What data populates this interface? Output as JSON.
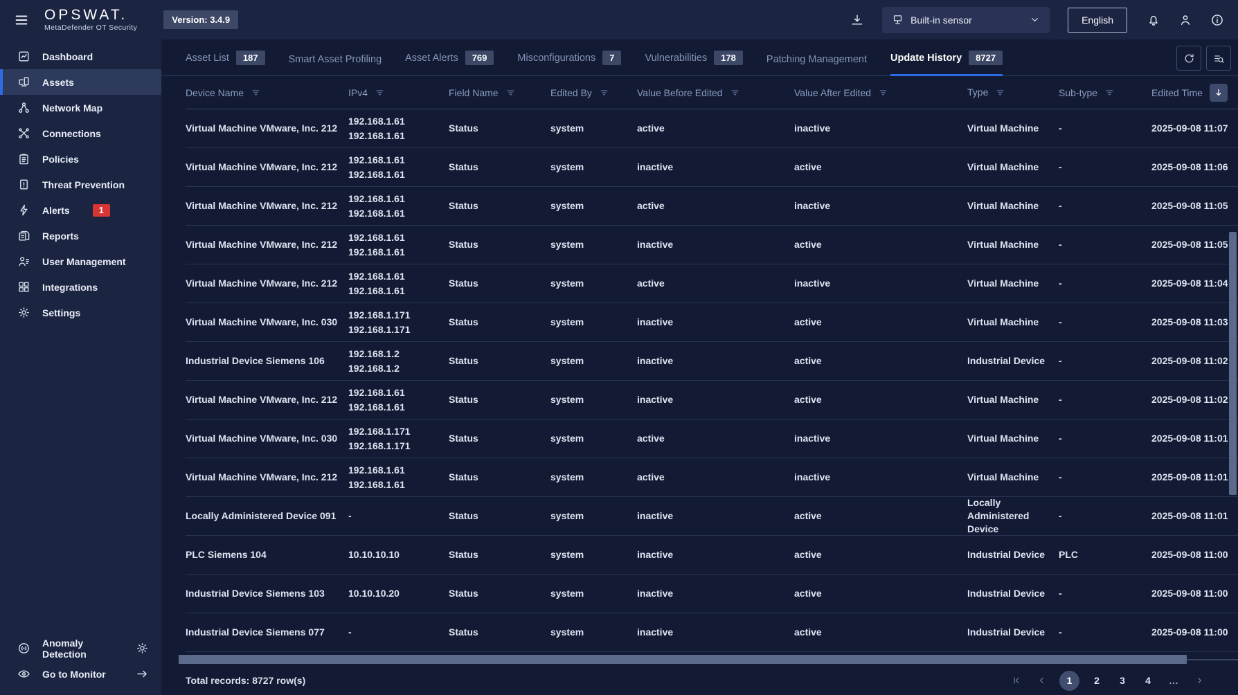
{
  "brand": {
    "logo": "OPSWAT.",
    "subtitle": "MetaDefender OT Security"
  },
  "topbar": {
    "version": "Version: 3.4.9",
    "sensor": "Built-in sensor",
    "language": "English"
  },
  "colors": {
    "accent_blue": "#2e6be6",
    "alert_red": "#d93535",
    "badge_slate": "#3c4866",
    "sidebar_bg": "#1b2542",
    "main_bg": "#121b33"
  },
  "sidebar": {
    "items": [
      {
        "label": "Dashboard",
        "icon": "dashboard"
      },
      {
        "label": "Assets",
        "icon": "assets",
        "active": true
      },
      {
        "label": "Network Map",
        "icon": "network"
      },
      {
        "label": "Connections",
        "icon": "connections"
      },
      {
        "label": "Policies",
        "icon": "policies"
      },
      {
        "label": "Threat Prevention",
        "icon": "threat"
      },
      {
        "label": "Alerts",
        "icon": "alerts",
        "badge": "1"
      },
      {
        "label": "Reports",
        "icon": "reports"
      },
      {
        "label": "User Management",
        "icon": "users"
      },
      {
        "label": "Integrations",
        "icon": "integrations"
      },
      {
        "label": "Settings",
        "icon": "settings"
      }
    ],
    "bottom": [
      {
        "label": "Anomaly Detection",
        "icon": "anomaly",
        "trailing": "gear"
      },
      {
        "label": "Go to Monitor",
        "icon": "eye",
        "trailing": "arrow-right"
      }
    ]
  },
  "tabs": [
    {
      "label": "Asset List",
      "badge": "187"
    },
    {
      "label": "Smart Asset Profiling"
    },
    {
      "label": "Asset Alerts",
      "badge": "769"
    },
    {
      "label": "Misconfigurations",
      "badge": "7"
    },
    {
      "label": "Vulnerabilities",
      "badge": "178"
    },
    {
      "label": "Patching Management"
    },
    {
      "label": "Update History",
      "badge": "8727",
      "active": true
    }
  ],
  "table": {
    "columns": [
      {
        "key": "device",
        "label": "Device Name",
        "filter": true
      },
      {
        "key": "ip",
        "label": "IPv4",
        "filter": true
      },
      {
        "key": "field",
        "label": "Field Name",
        "filter": true
      },
      {
        "key": "edited_by",
        "label": "Edited By",
        "filter": true
      },
      {
        "key": "before",
        "label": "Value Before Edited",
        "filter": true
      },
      {
        "key": "after",
        "label": "Value After Edited",
        "filter": true
      },
      {
        "key": "type",
        "label": "Type",
        "filter": true
      },
      {
        "key": "subtype",
        "label": "Sub-type",
        "filter": true
      },
      {
        "key": "time",
        "label": "Edited Time",
        "sort": "desc"
      }
    ],
    "rows": [
      {
        "device": "Virtual Machine VMware, Inc. 212",
        "ip": [
          "192.168.1.61",
          "192.168.1.61"
        ],
        "field": "Status",
        "edited_by": "system",
        "before": "active",
        "after": "inactive",
        "type": "Virtual Machine",
        "subtype": "-",
        "time": "2025-09-08 11:07"
      },
      {
        "device": "Virtual Machine VMware, Inc. 212",
        "ip": [
          "192.168.1.61",
          "192.168.1.61"
        ],
        "field": "Status",
        "edited_by": "system",
        "before": "inactive",
        "after": "active",
        "type": "Virtual Machine",
        "subtype": "-",
        "time": "2025-09-08 11:06"
      },
      {
        "device": "Virtual Machine VMware, Inc. 212",
        "ip": [
          "192.168.1.61",
          "192.168.1.61"
        ],
        "field": "Status",
        "edited_by": "system",
        "before": "active",
        "after": "inactive",
        "type": "Virtual Machine",
        "subtype": "-",
        "time": "2025-09-08 11:05"
      },
      {
        "device": "Virtual Machine VMware, Inc. 212",
        "ip": [
          "192.168.1.61",
          "192.168.1.61"
        ],
        "field": "Status",
        "edited_by": "system",
        "before": "inactive",
        "after": "active",
        "type": "Virtual Machine",
        "subtype": "-",
        "time": "2025-09-08 11:05"
      },
      {
        "device": "Virtual Machine VMware, Inc. 212",
        "ip": [
          "192.168.1.61",
          "192.168.1.61"
        ],
        "field": "Status",
        "edited_by": "system",
        "before": "active",
        "after": "inactive",
        "type": "Virtual Machine",
        "subtype": "-",
        "time": "2025-09-08 11:04"
      },
      {
        "device": "Virtual Machine VMware, Inc. 030",
        "ip": [
          "192.168.1.171",
          "192.168.1.171"
        ],
        "field": "Status",
        "edited_by": "system",
        "before": "inactive",
        "after": "active",
        "type": "Virtual Machine",
        "subtype": "-",
        "time": "2025-09-08 11:03"
      },
      {
        "device": "Industrial Device Siemens 106",
        "ip": [
          "192.168.1.2",
          "192.168.1.2"
        ],
        "field": "Status",
        "edited_by": "system",
        "before": "inactive",
        "after": "active",
        "type": "Industrial Device",
        "subtype": "-",
        "time": "2025-09-08 11:02"
      },
      {
        "device": "Virtual Machine VMware, Inc. 212",
        "ip": [
          "192.168.1.61",
          "192.168.1.61"
        ],
        "field": "Status",
        "edited_by": "system",
        "before": "inactive",
        "after": "active",
        "type": "Virtual Machine",
        "subtype": "-",
        "time": "2025-09-08 11:02"
      },
      {
        "device": "Virtual Machine VMware, Inc. 030",
        "ip": [
          "192.168.1.171",
          "192.168.1.171"
        ],
        "field": "Status",
        "edited_by": "system",
        "before": "active",
        "after": "inactive",
        "type": "Virtual Machine",
        "subtype": "-",
        "time": "2025-09-08 11:01"
      },
      {
        "device": "Virtual Machine VMware, Inc. 212",
        "ip": [
          "192.168.1.61",
          "192.168.1.61"
        ],
        "field": "Status",
        "edited_by": "system",
        "before": "active",
        "after": "inactive",
        "type": "Virtual Machine",
        "subtype": "-",
        "time": "2025-09-08 11:01"
      },
      {
        "device": "Locally Administered Device 091",
        "ip": [
          "-"
        ],
        "field": "Status",
        "edited_by": "system",
        "before": "inactive",
        "after": "active",
        "type": "Locally Administered Device",
        "subtype": "-",
        "time": "2025-09-08 11:01"
      },
      {
        "device": "PLC Siemens 104",
        "ip": [
          "10.10.10.10"
        ],
        "field": "Status",
        "edited_by": "system",
        "before": "inactive",
        "after": "active",
        "type": "Industrial Device",
        "subtype": "PLC",
        "time": "2025-09-08 11:00"
      },
      {
        "device": "Industrial Device Siemens 103",
        "ip": [
          "10.10.10.20"
        ],
        "field": "Status",
        "edited_by": "system",
        "before": "inactive",
        "after": "active",
        "type": "Industrial Device",
        "subtype": "-",
        "time": "2025-09-08 11:00"
      },
      {
        "device": "Industrial Device Siemens 077",
        "ip": [
          "-"
        ],
        "field": "Status",
        "edited_by": "system",
        "before": "inactive",
        "after": "active",
        "type": "Industrial Device",
        "subtype": "-",
        "time": "2025-09-08 11:00"
      }
    ]
  },
  "footer": {
    "total": "Total records: 8727 row(s)",
    "pages": [
      "1",
      "2",
      "3",
      "4"
    ],
    "active_page": "1",
    "ellipsis": "…"
  }
}
